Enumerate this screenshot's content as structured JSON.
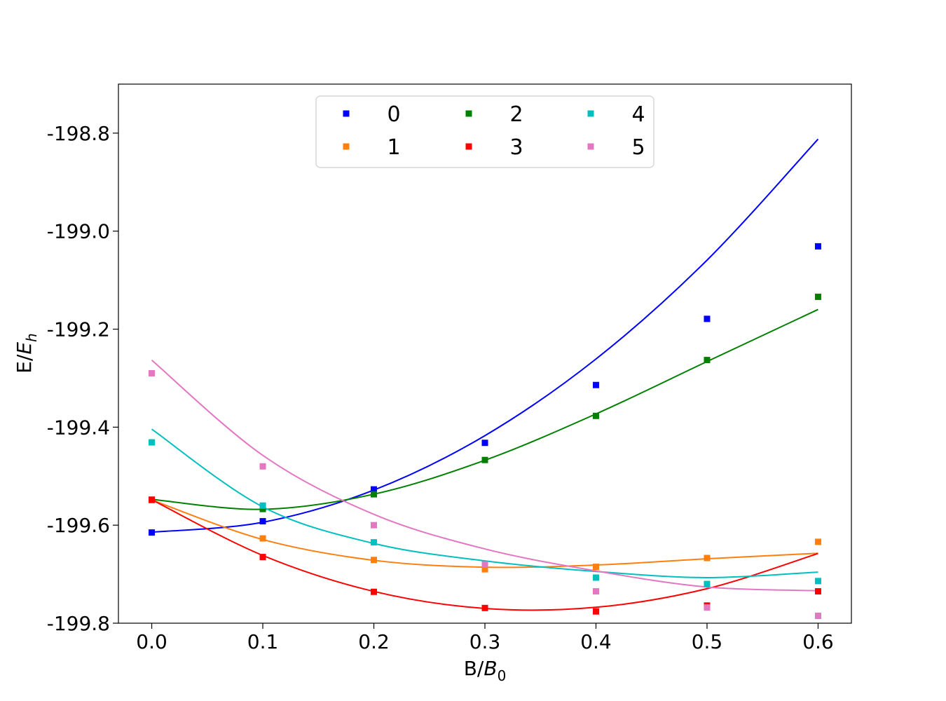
{
  "chart_data": {
    "type": "scatter",
    "xlabel": "B/B0",
    "ylabel": "E/Eh",
    "xlim": [
      -0.03,
      0.63
    ],
    "ylim": [
      -199.8,
      -198.7
    ],
    "xticks": [
      "0.0",
      "0.1",
      "0.2",
      "0.3",
      "0.4",
      "0.5",
      "0.6"
    ],
    "yticks": [
      "-199.8",
      "-199.6",
      "-199.4",
      "-199.2",
      "-199.0",
      "-198.8"
    ],
    "x": [
      0.0,
      0.1,
      0.2,
      0.3,
      0.4,
      0.5,
      0.6
    ],
    "legend_position": "upper-center",
    "legend_columns": 3,
    "series": [
      {
        "name": "0",
        "color": "#0000ff",
        "values": [
          -199.615,
          -199.592,
          -199.527,
          -199.432,
          -199.314,
          -199.179,
          -199.031
        ],
        "fit": [
          -199.6143,
          -199.594,
          -199.5283,
          -199.4173,
          -199.2609,
          -199.0592,
          -198.8122
        ]
      },
      {
        "name": "1",
        "color": "#ff7f0e",
        "values": [
          -199.549,
          -199.627,
          -199.671,
          -199.69,
          -199.685,
          -199.667,
          -199.634
        ],
        "fit": [
          -199.5485,
          -199.6293,
          -199.6717,
          -199.6857,
          -199.6813,
          -199.6685,
          -199.6573
        ]
      },
      {
        "name": "2",
        "color": "#008000",
        "values": [
          -199.548,
          -199.567,
          -199.537,
          -199.467,
          -199.377,
          -199.263,
          -199.134
        ],
        "fit": [
          -199.5473,
          -199.5676,
          -199.5367,
          -199.4675,
          -199.373,
          -199.2661,
          -199.1598
        ]
      },
      {
        "name": "3",
        "color": "#ff0000",
        "values": [
          -199.548,
          -199.665,
          -199.736,
          -199.769,
          -199.776,
          -199.764,
          -199.735
        ],
        "fit": [
          -199.5481,
          -199.6618,
          -199.7352,
          -199.7699,
          -199.7675,
          -199.7296,
          -199.6578
        ]
      },
      {
        "name": "4",
        "color": "#00bfbf",
        "values": [
          -199.431,
          -199.56,
          -199.635,
          -199.68,
          -199.707,
          -199.72,
          -199.714
        ],
        "fit": [
          -199.4041,
          -199.5627,
          -199.6373,
          -199.6729,
          -199.6945,
          -199.707,
          -199.6957
        ]
      },
      {
        "name": "5",
        "color": "#e377c2",
        "values": [
          -199.29,
          -199.48,
          -199.6,
          -199.68,
          -199.735,
          -199.768,
          -199.785
        ],
        "fit": [
          -199.2633,
          -199.4575,
          -199.5779,
          -199.6485,
          -199.6933,
          -199.7263,
          -199.7337
        ]
      }
    ]
  }
}
